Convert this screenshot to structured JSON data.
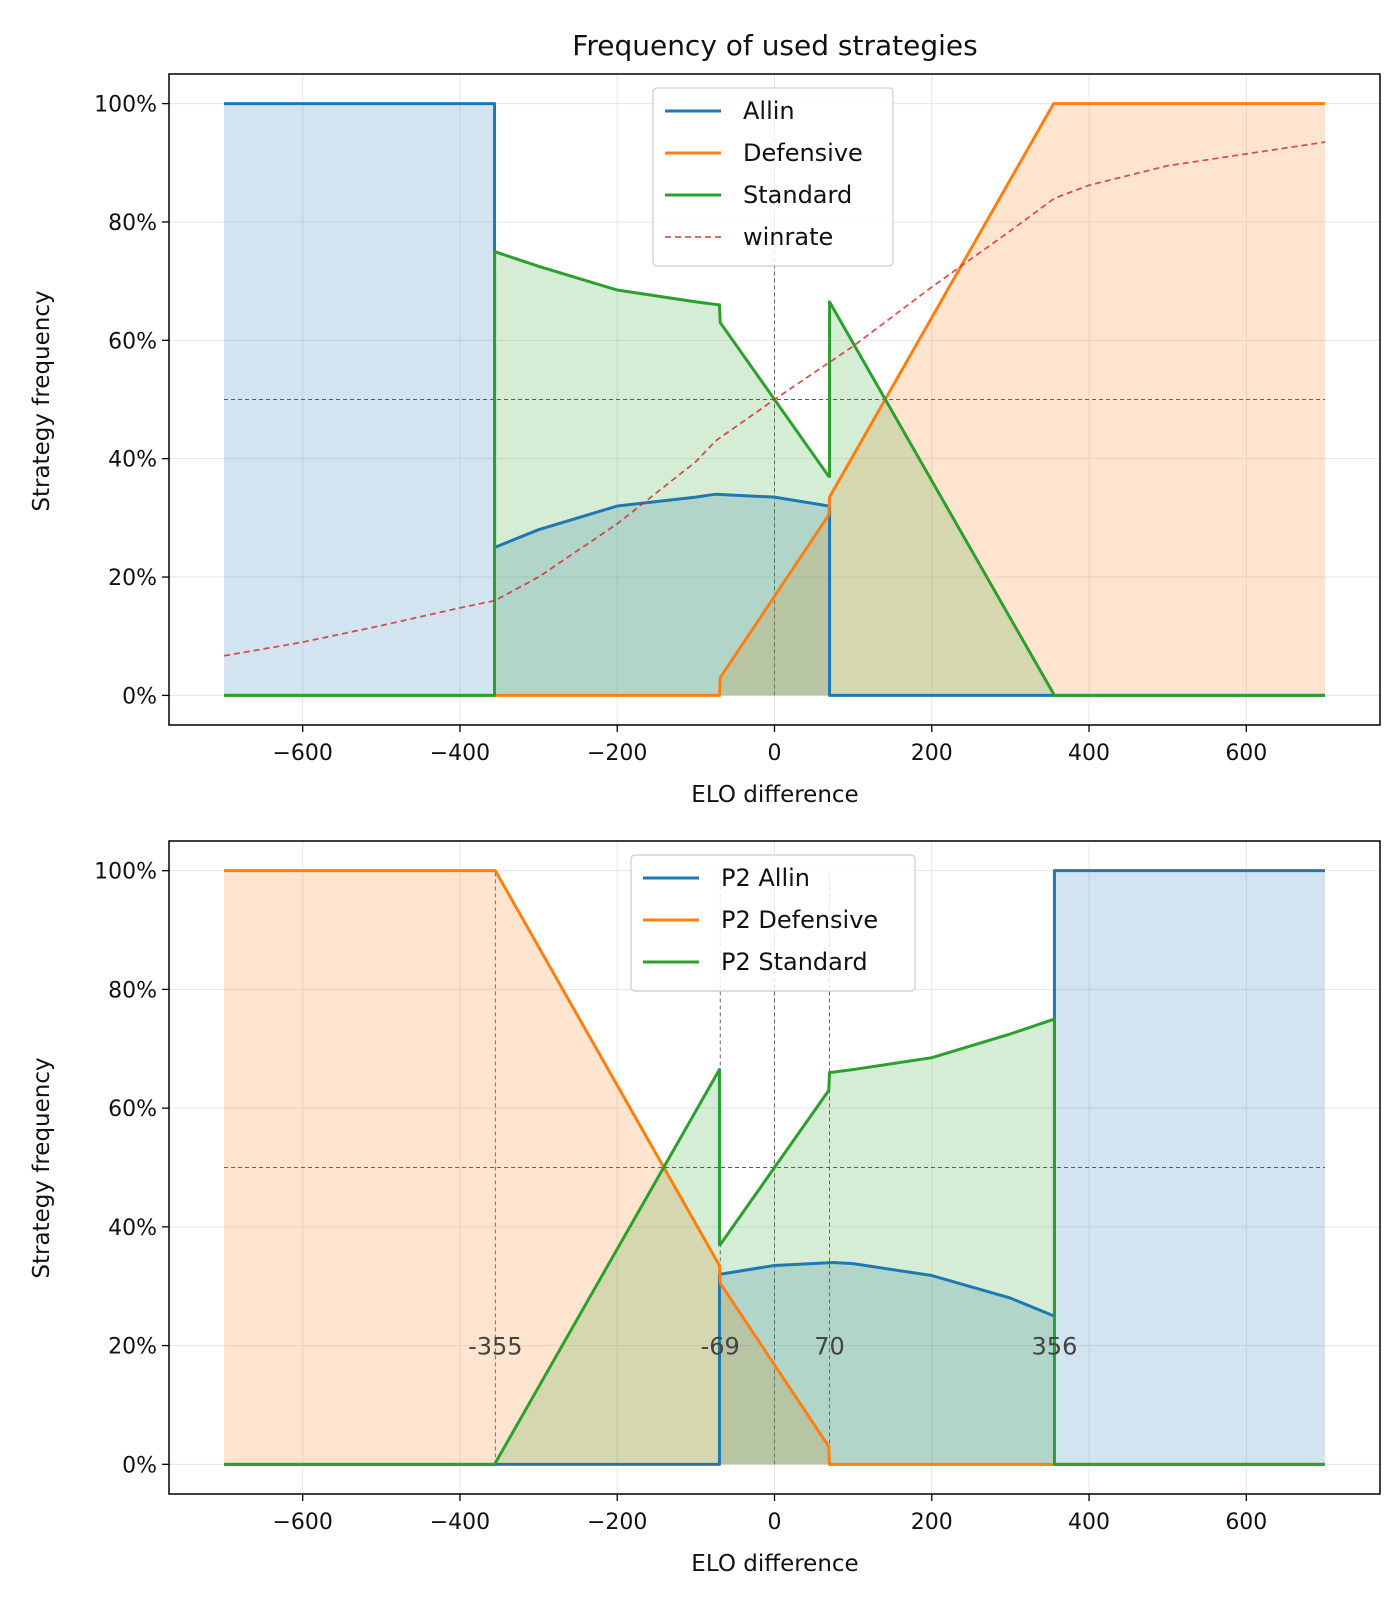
{
  "chart_data": [
    {
      "type": "area",
      "title": "Frequency of used strategies",
      "xlabel": "ELO difference",
      "ylabel": "Strategy frequency",
      "xlim": [
        -770,
        770
      ],
      "ylim": [
        -0.05,
        1.05
      ],
      "xticks": [
        -600,
        -400,
        -200,
        0,
        200,
        400,
        600
      ],
      "xtick_labels": [
        "−600",
        "−400",
        "−200",
        "0",
        "200",
        "400",
        "600"
      ],
      "yticks": [
        0,
        0.2,
        0.4,
        0.6,
        0.8,
        1.0
      ],
      "ytick_labels": [
        "0%",
        "20%",
        "40%",
        "60%",
        "80%",
        "100%"
      ],
      "grid": true,
      "legend_position": "top-center",
      "hlines": [
        0.5
      ],
      "vlines": [
        0
      ],
      "series": [
        {
          "name": "Allin",
          "color": "#1f77b4",
          "fill": true,
          "x": [
            -700,
            -356,
            -356,
            -300,
            -200,
            -100,
            -75,
            0,
            69,
            70,
            70,
            700
          ],
          "y": [
            1.0,
            1.0,
            0.25,
            0.28,
            0.32,
            0.335,
            0.34,
            0.335,
            0.32,
            0.32,
            0.0,
            0.0
          ]
        },
        {
          "name": "Defensive",
          "color": "#ff7f0e",
          "fill": true,
          "x": [
            -700,
            -70,
            -69,
            69,
            70,
            355,
            700
          ],
          "y": [
            0.0,
            0.0,
            0.03,
            0.305,
            0.335,
            1.0,
            1.0
          ]
        },
        {
          "name": "Standard",
          "color": "#2ca02c",
          "fill": true,
          "x": [
            -700,
            -356,
            -356,
            -300,
            -200,
            -100,
            -71,
            -70,
            -69,
            69,
            70,
            70,
            356,
            700
          ],
          "y": [
            0.0,
            0.0,
            0.75,
            0.725,
            0.685,
            0.665,
            0.66,
            0.66,
            0.63,
            0.37,
            0.37,
            0.665,
            0.0,
            0.0
          ]
        },
        {
          "name": "winrate",
          "color": "#d62728",
          "dashed": true,
          "fill": false,
          "x": [
            -700,
            -600,
            -500,
            -400,
            -356,
            -300,
            -200,
            -100,
            -75,
            0,
            100,
            200,
            300,
            356,
            400,
            500,
            600,
            700
          ],
          "y": [
            0.067,
            0.09,
            0.118,
            0.148,
            0.16,
            0.2,
            0.29,
            0.395,
            0.43,
            0.5,
            0.59,
            0.69,
            0.785,
            0.84,
            0.862,
            0.895,
            0.915,
            0.935
          ]
        }
      ]
    },
    {
      "type": "area",
      "title": "",
      "xlabel": "ELO difference",
      "ylabel": "Strategy frequency",
      "xlim": [
        -770,
        770
      ],
      "ylim": [
        -0.05,
        1.05
      ],
      "xticks": [
        -600,
        -400,
        -200,
        0,
        200,
        400,
        600
      ],
      "xtick_labels": [
        "−600",
        "−400",
        "−200",
        "0",
        "200",
        "400",
        "600"
      ],
      "yticks": [
        0,
        0.2,
        0.4,
        0.6,
        0.8,
        1.0
      ],
      "ytick_labels": [
        "0%",
        "20%",
        "40%",
        "60%",
        "80%",
        "100%"
      ],
      "grid": true,
      "legend_position": "top-center",
      "hlines": [
        0.5
      ],
      "vlines": [
        -355,
        -69,
        0,
        70,
        356
      ],
      "annotations": [
        {
          "x": -355,
          "y": 0.2,
          "text": "-355"
        },
        {
          "x": -69,
          "y": 0.2,
          "text": "-69"
        },
        {
          "x": 70,
          "y": 0.2,
          "text": "70"
        },
        {
          "x": 356,
          "y": 0.2,
          "text": "356"
        }
      ],
      "series": [
        {
          "name": "P2 Allin",
          "color": "#1f77b4",
          "fill": true,
          "x": [
            -700,
            -70,
            -70,
            0,
            75,
            100,
            200,
            300,
            355,
            356,
            356,
            700
          ],
          "y": [
            0.0,
            0.0,
            0.32,
            0.335,
            0.34,
            0.338,
            0.318,
            0.28,
            0.25,
            0.25,
            1.0,
            1.0
          ]
        },
        {
          "name": "P2 Defensive",
          "color": "#ff7f0e",
          "fill": true,
          "x": [
            -700,
            -355,
            -70,
            -69,
            69,
            70,
            700
          ],
          "y": [
            1.0,
            1.0,
            0.335,
            0.305,
            0.03,
            0.0,
            0.0
          ]
        },
        {
          "name": "P2 Standard",
          "color": "#2ca02c",
          "fill": true,
          "x": [
            -700,
            -356,
            -70,
            -70,
            -69,
            69,
            70,
            71,
            100,
            200,
            300,
            356,
            356,
            700
          ],
          "y": [
            0.0,
            0.0,
            0.665,
            0.37,
            0.37,
            0.63,
            0.66,
            0.66,
            0.665,
            0.685,
            0.725,
            0.75,
            0.0,
            0.0
          ]
        }
      ]
    }
  ]
}
